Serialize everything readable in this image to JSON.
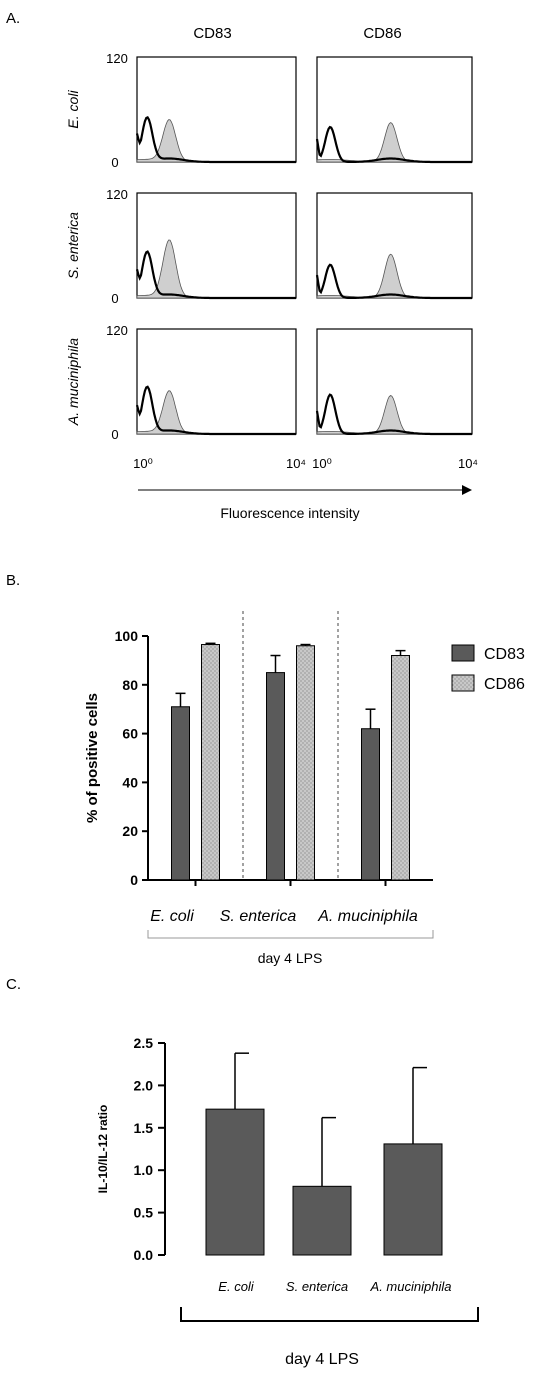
{
  "panels": {
    "a": "A.",
    "b": "B.",
    "c": "C."
  },
  "colors": {
    "dark_bar": "#5a5a5a",
    "light_bar": "#c8c8c8",
    "histogram_fill": "#cfcfcf",
    "axis": "#000000"
  },
  "chart_data": [
    {
      "type": "area",
      "panel": "A",
      "columns": [
        "CD83",
        "CD86"
      ],
      "rows": [
        "E. coli",
        "S. enterica",
        "A. muciniphila"
      ],
      "ylim": [
        0,
        120
      ],
      "y_ticks": [
        "0",
        "120"
      ],
      "xscale": "log",
      "x_ticks": [
        "10⁰",
        "10⁴"
      ],
      "xlabel": "Fluorescence intensity",
      "grid": false,
      "histograms": [
        {
          "row": "E. coli",
          "column": "CD83",
          "unfilled_peak": {
            "x": 1.8,
            "y": 50
          },
          "filled_peak": {
            "x": 6.5,
            "y": 47
          }
        },
        {
          "row": "E. coli",
          "column": "CD86",
          "unfilled_peak": {
            "x": 2.2,
            "y": 40
          },
          "filled_peak": {
            "x": 80,
            "y": 45
          }
        },
        {
          "row": "S. enterica",
          "column": "CD83",
          "unfilled_peak": {
            "x": 1.8,
            "y": 52
          },
          "filled_peak": {
            "x": 6.5,
            "y": 65
          }
        },
        {
          "row": "S. enterica",
          "column": "CD86",
          "unfilled_peak": {
            "x": 2.2,
            "y": 38
          },
          "filled_peak": {
            "x": 80,
            "y": 50
          }
        },
        {
          "row": "A. muciniphila",
          "column": "CD83",
          "unfilled_peak": {
            "x": 1.8,
            "y": 53
          },
          "filled_peak": {
            "x": 6.5,
            "y": 48
          }
        },
        {
          "row": "A. muciniphila",
          "column": "CD86",
          "unfilled_peak": {
            "x": 2.2,
            "y": 45
          },
          "filled_peak": {
            "x": 80,
            "y": 44
          }
        }
      ]
    },
    {
      "type": "bar",
      "panel": "B",
      "categories": [
        "E. coli",
        "S. enterica",
        "A. muciniphila"
      ],
      "series": [
        {
          "name": "CD83",
          "values": [
            71,
            85,
            62
          ],
          "errors": [
            5.5,
            7,
            8
          ]
        },
        {
          "name": "CD86",
          "values": [
            96.5,
            96,
            92
          ],
          "errors": [
            0.5,
            0.5,
            2
          ]
        }
      ],
      "ylabel": "% of positive cells",
      "group_label": "day 4 LPS",
      "ylim": [
        0,
        100
      ],
      "y_ticks": [
        "0",
        "20",
        "40",
        "60",
        "80",
        "100"
      ],
      "legend": "right",
      "grid": false
    },
    {
      "type": "bar",
      "panel": "C",
      "categories": [
        "E. coli",
        "S. enterica",
        "A. muciniphila"
      ],
      "values": [
        1.72,
        0.81,
        1.31
      ],
      "errors": [
        0.66,
        0.81,
        0.9
      ],
      "ylabel": "IL-10/IL-12 ratio",
      "group_label": "day 4 LPS",
      "ylim": [
        0,
        2.5
      ],
      "y_ticks": [
        "0.0",
        "0.5",
        "1.0",
        "1.5",
        "2.0",
        "2.5"
      ],
      "grid": false
    }
  ]
}
